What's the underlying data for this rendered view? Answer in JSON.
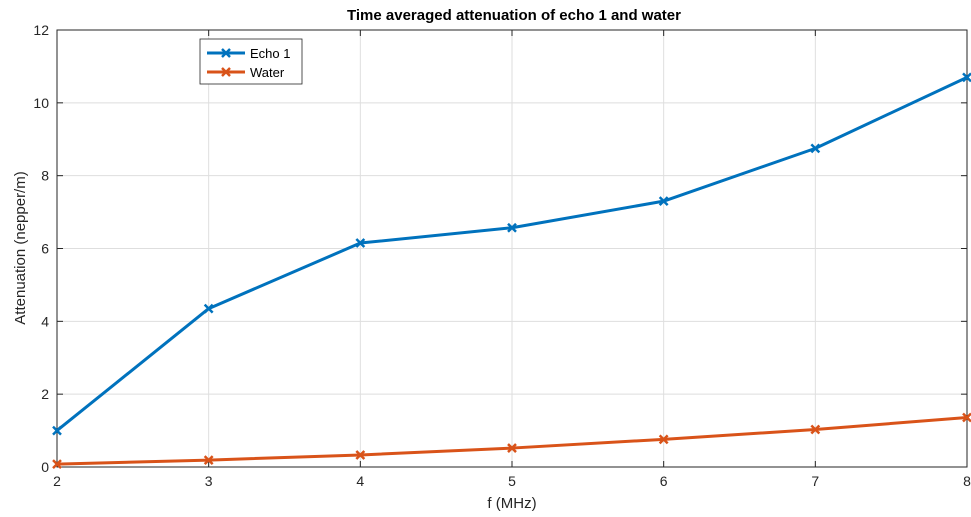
{
  "chart_data": {
    "type": "line",
    "title": "Time averaged attenuation of echo 1 and water",
    "xlabel": "f (MHz)",
    "ylabel": "Attenuation (nepper/m)",
    "x": [
      2,
      3,
      4,
      5,
      6,
      7,
      8
    ],
    "xlim": [
      2,
      8
    ],
    "ylim": [
      0,
      12
    ],
    "xticks": [
      2,
      3,
      4,
      5,
      6,
      7,
      8
    ],
    "yticks": [
      0,
      2,
      4,
      6,
      8,
      10,
      12
    ],
    "grid": true,
    "legend_position": "top-left",
    "series": [
      {
        "name": "Echo 1",
        "color": "#0072bd",
        "marker": "x",
        "values": [
          1.0,
          4.35,
          6.15,
          6.57,
          7.3,
          8.75,
          10.7
        ]
      },
      {
        "name": "Water",
        "color": "#d95319",
        "marker": "x",
        "values": [
          0.08,
          0.19,
          0.33,
          0.52,
          0.76,
          1.03,
          1.36
        ]
      }
    ]
  }
}
